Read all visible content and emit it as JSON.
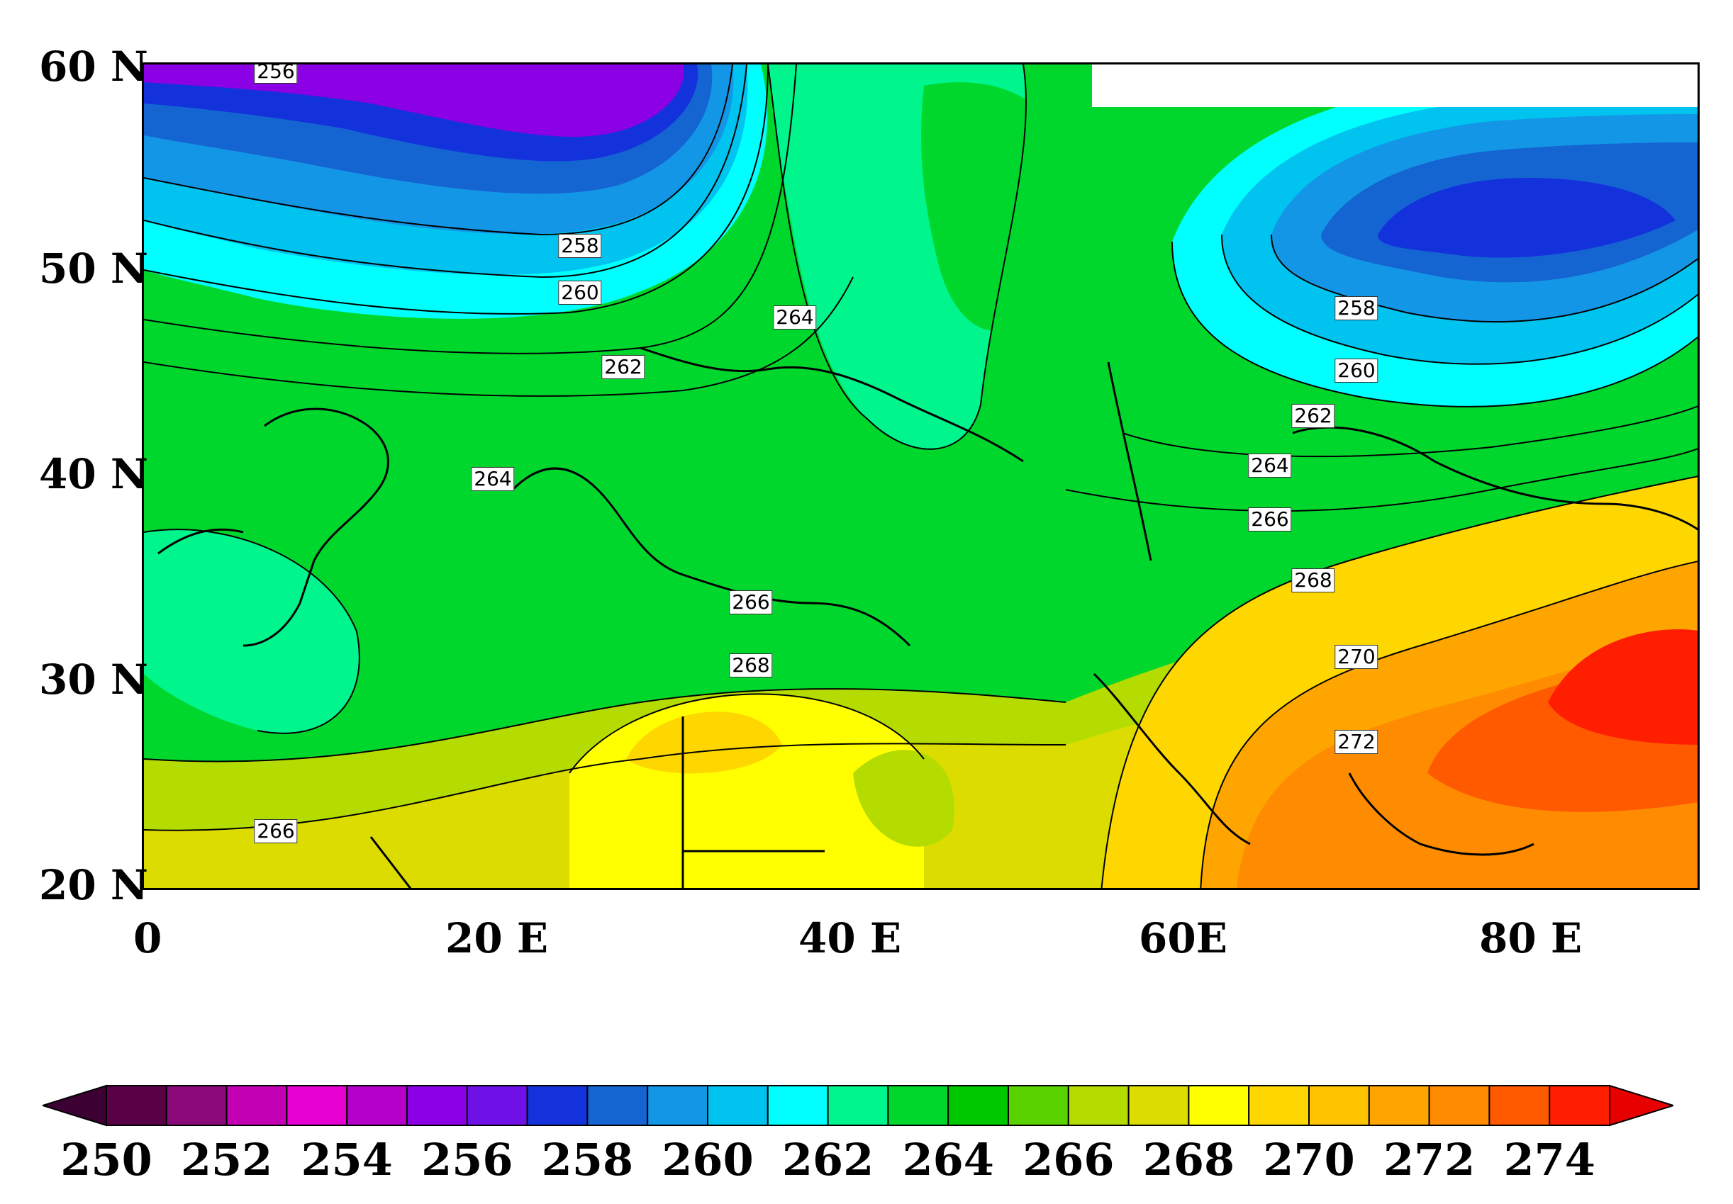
{
  "axes": {
    "lat_labels": [
      "60 N",
      "50 N",
      "40 N",
      "30 N",
      "20 N"
    ],
    "lon_labels": [
      "0",
      "20 E",
      "40 E",
      "60E",
      "80 E"
    ]
  },
  "contour_labels": [
    "256",
    "258",
    "260",
    "264",
    "262",
    "264",
    "258",
    "260",
    "262",
    "264",
    "266",
    "266",
    "268",
    "268",
    "270",
    "272",
    "266"
  ],
  "colorbar": {
    "labels": [
      "250",
      "252",
      "254",
      "256",
      "258",
      "260",
      "262",
      "264",
      "266",
      "268",
      "270",
      "272",
      "274"
    ],
    "colors": [
      "#5a0046",
      "#8a0a7a",
      "#c300b4",
      "#e600d2",
      "#b400c8",
      "#8c00e6",
      "#6e10e6",
      "#1432dc",
      "#1464d2",
      "#1496e6",
      "#00c3f0",
      "#00ffff",
      "#00f58c",
      "#00d72d",
      "#00c800",
      "#5ad200",
      "#b4dc00",
      "#dcdc00",
      "#ffff00",
      "#ffd700",
      "#ffc300",
      "#ffa500",
      "#ff8c00",
      "#ff5a00",
      "#ff1e00"
    ],
    "min_color": "#3c0032",
    "max_color": "#e60000"
  }
}
